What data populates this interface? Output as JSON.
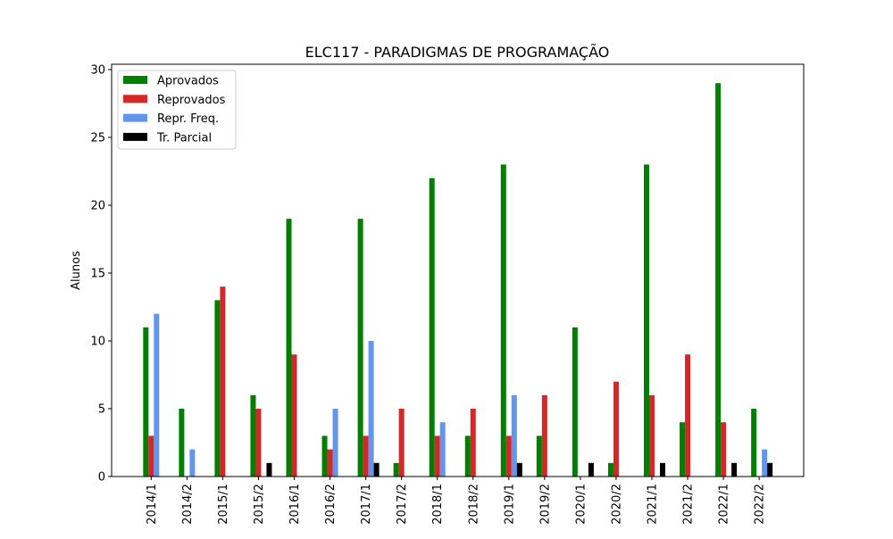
{
  "chart_data": {
    "type": "bar",
    "title": "ELC117 - PARADIGMAS DE PROGRAMAÇÃO",
    "xlabel": "",
    "ylabel": "Alunos",
    "ylim": [
      0,
      30
    ],
    "yticks": [
      0,
      5,
      10,
      15,
      20,
      25,
      30
    ],
    "legend_position": "top-left",
    "categories": [
      "2014/1",
      "2014/2",
      "2015/1",
      "2015/2",
      "2016/1",
      "2016/2",
      "2017/1",
      "2017/2",
      "2018/1",
      "2018/2",
      "2019/1",
      "2019/2",
      "2020/1",
      "2020/2",
      "2021/1",
      "2021/2",
      "2022/1",
      "2022/2"
    ],
    "series": [
      {
        "name": "Aprovados",
        "color": "#008000",
        "values": [
          11,
          5,
          13,
          6,
          19,
          3,
          19,
          1,
          22,
          3,
          23,
          3,
          11,
          1,
          23,
          4,
          29,
          5
        ]
      },
      {
        "name": "Reprovados",
        "color": "#d62728",
        "values": [
          3,
          0,
          14,
          5,
          9,
          2,
          3,
          5,
          3,
          5,
          3,
          6,
          0,
          7,
          6,
          9,
          4,
          0
        ]
      },
      {
        "name": "Repr. Freq.",
        "color": "#6495ed",
        "values": [
          12,
          2,
          0,
          0,
          0,
          5,
          10,
          0,
          4,
          0,
          6,
          0,
          0,
          0,
          0,
          0,
          0,
          2
        ]
      },
      {
        "name": "Tr. Parcial",
        "color": "#000000",
        "values": [
          0,
          0,
          0,
          1,
          0,
          0,
          1,
          0,
          0,
          0,
          1,
          0,
          1,
          0,
          1,
          0,
          1,
          1
        ]
      }
    ]
  }
}
